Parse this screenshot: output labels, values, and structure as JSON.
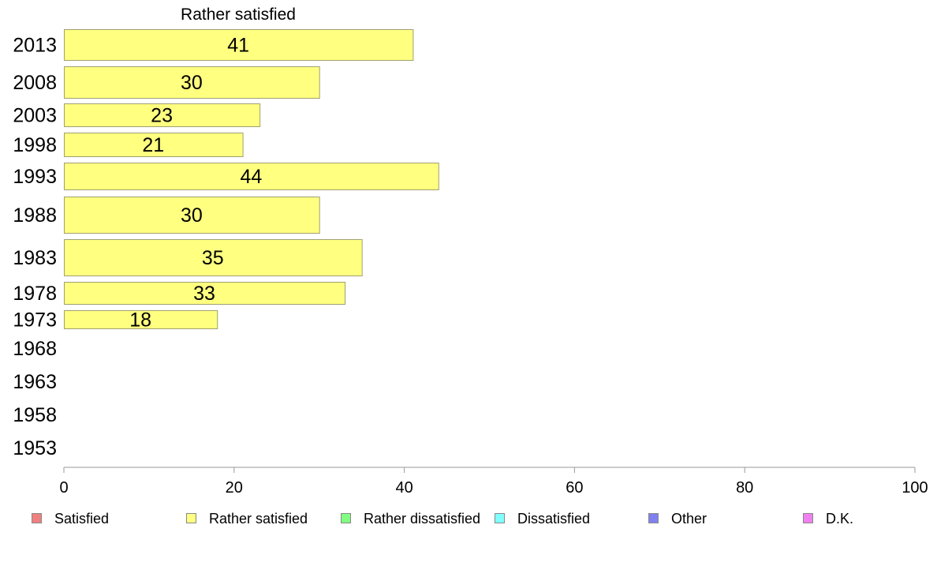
{
  "chart_data": {
    "type": "bar",
    "orientation": "horizontal",
    "title": "Rather satisfied",
    "categories": [
      "2013",
      "2008",
      "2003",
      "1998",
      "1993",
      "1988",
      "1983",
      "1978",
      "1973",
      "1968",
      "1963",
      "1958",
      "1953"
    ],
    "series": [
      {
        "name": "Rather satisfied",
        "values": [
          41,
          30,
          23,
          21,
          44,
          30,
          35,
          33,
          18,
          null,
          null,
          null,
          null
        ]
      }
    ],
    "xlim": [
      0,
      100
    ],
    "xticks": [
      "0",
      "20",
      "40",
      "60",
      "80",
      "100"
    ],
    "xlabel": "",
    "ylabel": "",
    "grid": false,
    "legend": {
      "position": "bottom",
      "entries": [
        {
          "label": "Satisfied",
          "color": "#f08080"
        },
        {
          "label": "Rather satisfied",
          "color": "#ffff80"
        },
        {
          "label": "Rather dissatisfied",
          "color": "#80ff80"
        },
        {
          "label": "Dissatisfied",
          "color": "#80ffff"
        },
        {
          "label": "Other",
          "color": "#8080f0"
        },
        {
          "label": "D.K.",
          "color": "#f080f0"
        }
      ]
    },
    "bar_color": "#ffff80",
    "bar_border_color": "#a0a070"
  }
}
